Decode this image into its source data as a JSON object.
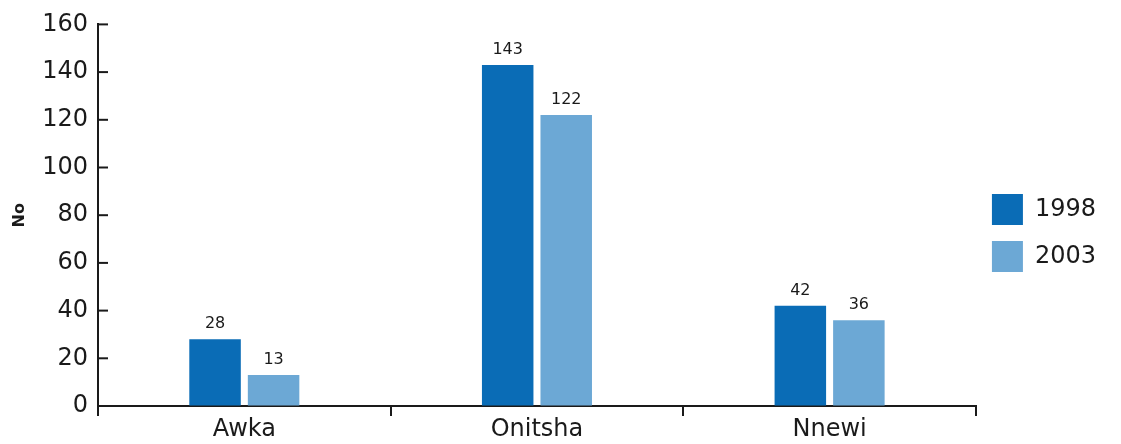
{
  "chart_data": {
    "type": "bar",
    "ylabel": "No",
    "categories": [
      "Awka",
      "Onitsha",
      "Nnewi"
    ],
    "series": [
      {
        "name": "1998",
        "color": "#0a6cb6",
        "values": [
          28,
          143,
          42
        ]
      },
      {
        "name": "2003",
        "color": "#6ca8d5",
        "values": [
          13,
          122,
          36
        ]
      }
    ],
    "ylim": [
      0,
      160
    ],
    "yticks": [
      0,
      20,
      40,
      60,
      80,
      100,
      120,
      140,
      160
    ],
    "data_labels": true,
    "legend": "right"
  }
}
